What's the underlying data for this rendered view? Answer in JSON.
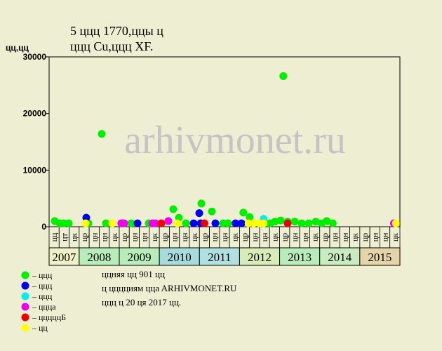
{
  "chart_data": {
    "type": "scatter",
    "title": "5 ццц 1770,ццы ц",
    "subtitle": "ццц Cu,ццц XF.",
    "y_label": "цц,цц",
    "watermark": "arhivmonet.ru",
    "ylim": [
      0,
      30000
    ],
    "yticks": [
      0,
      10000,
      20000,
      30000
    ],
    "xlim": [
      0,
      35
    ],
    "categories": [
      "цц",
      "цт",
      "цк",
      "цр",
      "цн",
      "цн",
      "цк",
      "цр",
      "цн",
      "цн",
      "цк",
      "цр",
      "цн",
      "цн",
      "цк",
      "цр",
      "цн",
      "цн",
      "цк",
      "цр",
      "цн",
      "цн",
      "цк",
      "цр",
      "цн",
      "цн",
      "цк",
      "цр",
      "цн",
      "цн",
      "цк",
      "цр",
      "цн",
      "цн",
      "цк"
    ],
    "year_groups": [
      {
        "label": "2007",
        "columns": 3,
        "color": "#f0f0c8"
      },
      {
        "label": "2008",
        "columns": 4,
        "color": "#b8ecb8"
      },
      {
        "label": "2009",
        "columns": 4,
        "color": "#b8ecb8"
      },
      {
        "label": "2010",
        "columns": 4,
        "color": "#a8dcdc"
      },
      {
        "label": "2011",
        "columns": 4,
        "color": "#b0e0e0"
      },
      {
        "label": "2012",
        "columns": 4,
        "color": "#d8ecb8"
      },
      {
        "label": "2013",
        "columns": 4,
        "color": "#b8ecb8"
      },
      {
        "label": "2014",
        "columns": 4,
        "color": "#c8ecc0"
      },
      {
        "label": "2015",
        "columns": 4,
        "color": "#e4d4a8"
      }
    ],
    "series": [
      {
        "name": "– ццц",
        "color": "#00ee00",
        "x": [
          0.56,
          1.05,
          1.47,
          1.96,
          3.92,
          5.25,
          5.67,
          8.19,
          9.94,
          12.39,
          12.95,
          13.65,
          15.19,
          16.24,
          17.36,
          17.85,
          19.38,
          20.01,
          22.04,
          22.53,
          23.37,
          23.1,
          23.8,
          24.5,
          25.2,
          25.9,
          26.6,
          27.2,
          27.7,
          28.3
        ],
        "values": [
          1000,
          600,
          600,
          600,
          600,
          16400,
          600,
          600,
          600,
          3100,
          1600,
          600,
          4100,
          2700,
          600,
          600,
          2500,
          1700,
          600,
          900,
          26600,
          1100,
          900,
          900,
          600,
          600,
          900,
          600,
          1000,
          600
        ]
      },
      {
        "name": "– ццц",
        "color": "#0000ee",
        "x": [
          3.71,
          7.28,
          8.82,
          14.42,
          14.98,
          15.12,
          16.59,
          18.6,
          19.2
        ],
        "values": [
          1600,
          600,
          600,
          600,
          2400,
          600,
          600,
          600,
          600
        ]
      },
      {
        "name": "– ццц",
        "color": "#00eeee",
        "x": [
          21.4
        ],
        "values": [
          1400
        ]
      },
      {
        "name": "– цццa",
        "color": "#ee00ee",
        "x": [
          7.2,
          7.5,
          10.3,
          10.6,
          11.9,
          34.4
        ],
        "values": [
          600,
          600,
          600,
          600,
          1000,
          600
        ]
      },
      {
        "name": "– цццццБ",
        "color": "#ee0000",
        "x": [
          11.2,
          15.5,
          23.8
        ],
        "values": [
          600,
          600,
          600
        ]
      },
      {
        "name": "– цц",
        "color": "#ffff00",
        "x": [
          3.64,
          6.3,
          12.8,
          19.9,
          20.4,
          21.0,
          21.4,
          34.6
        ],
        "values": [
          600,
          600,
          600,
          600,
          600,
          600,
          600,
          600
        ]
      }
    ],
    "notes": [
      "ццняя цц 901 цц",
      "ц цццциям ццa ARHIVMONET.RU",
      "ццц ц 20 ця 2017 цц."
    ]
  }
}
